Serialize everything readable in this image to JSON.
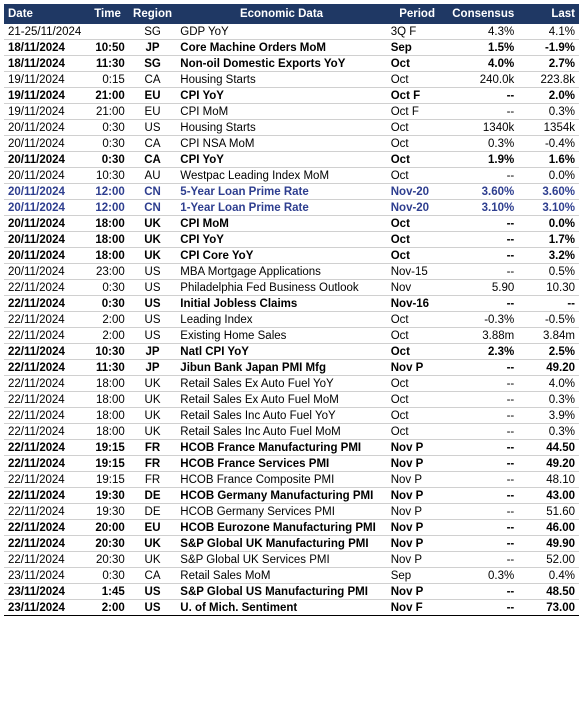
{
  "table": {
    "headers": {
      "date": "Date",
      "time": "Time",
      "region": "Region",
      "data": "Economic Data",
      "period": "Period",
      "consensus": "Consensus",
      "last": "Last"
    },
    "rows": [
      {
        "date": "21-25/11/2024",
        "time": "",
        "region": "SG",
        "data": "GDP YoY",
        "period": "3Q F",
        "consensus": "4.3%",
        "last": "4.1%",
        "bold": false,
        "blue": false
      },
      {
        "date": "18/11/2024",
        "time": "10:50",
        "region": "JP",
        "data": "Core Machine Orders MoM",
        "period": "Sep",
        "consensus": "1.5%",
        "last": "-1.9%",
        "bold": true,
        "blue": false
      },
      {
        "date": "18/11/2024",
        "time": "11:30",
        "region": "SG",
        "data": "Non-oil Domestic Exports YoY",
        "period": "Oct",
        "consensus": "4.0%",
        "last": "2.7%",
        "bold": true,
        "blue": false
      },
      {
        "date": "19/11/2024",
        "time": "0:15",
        "region": "CA",
        "data": "Housing Starts",
        "period": "Oct",
        "consensus": "240.0k",
        "last": "223.8k",
        "bold": false,
        "blue": false
      },
      {
        "date": "19/11/2024",
        "time": "21:00",
        "region": "EU",
        "data": "CPI YoY",
        "period": "Oct F",
        "consensus": "--",
        "last": "2.0%",
        "bold": true,
        "blue": false
      },
      {
        "date": "19/11/2024",
        "time": "21:00",
        "region": "EU",
        "data": "CPI MoM",
        "period": "Oct F",
        "consensus": "--",
        "last": "0.3%",
        "bold": false,
        "blue": false
      },
      {
        "date": "20/11/2024",
        "time": "0:30",
        "region": "US",
        "data": "Housing Starts",
        "period": "Oct",
        "consensus": "1340k",
        "last": "1354k",
        "bold": false,
        "blue": false
      },
      {
        "date": "20/11/2024",
        "time": "0:30",
        "region": "CA",
        "data": "CPI NSA MoM",
        "period": "Oct",
        "consensus": "0.3%",
        "last": "-0.4%",
        "bold": false,
        "blue": false
      },
      {
        "date": "20/11/2024",
        "time": "0:30",
        "region": "CA",
        "data": "CPI YoY",
        "period": "Oct",
        "consensus": "1.9%",
        "last": "1.6%",
        "bold": true,
        "blue": false
      },
      {
        "date": "20/11/2024",
        "time": "10:30",
        "region": "AU",
        "data": "Westpac Leading Index MoM",
        "period": "Oct",
        "consensus": "--",
        "last": "0.0%",
        "bold": false,
        "blue": false
      },
      {
        "date": "20/11/2024",
        "time": "12:00",
        "region": "CN",
        "data": "5-Year Loan Prime Rate",
        "period": "Nov-20",
        "consensus": "3.60%",
        "last": "3.60%",
        "bold": true,
        "blue": true
      },
      {
        "date": "20/11/2024",
        "time": "12:00",
        "region": "CN",
        "data": "1-Year Loan Prime Rate",
        "period": "Nov-20",
        "consensus": "3.10%",
        "last": "3.10%",
        "bold": true,
        "blue": true
      },
      {
        "date": "20/11/2024",
        "time": "18:00",
        "region": "UK",
        "data": "CPI MoM",
        "period": "Oct",
        "consensus": "--",
        "last": "0.0%",
        "bold": true,
        "blue": false
      },
      {
        "date": "20/11/2024",
        "time": "18:00",
        "region": "UK",
        "data": "CPI YoY",
        "period": "Oct",
        "consensus": "--",
        "last": "1.7%",
        "bold": true,
        "blue": false
      },
      {
        "date": "20/11/2024",
        "time": "18:00",
        "region": "UK",
        "data": "CPI Core YoY",
        "period": "Oct",
        "consensus": "--",
        "last": "3.2%",
        "bold": true,
        "blue": false
      },
      {
        "date": "20/11/2024",
        "time": "23:00",
        "region": "US",
        "data": "MBA Mortgage Applications",
        "period": "Nov-15",
        "consensus": "--",
        "last": "0.5%",
        "bold": false,
        "blue": false
      },
      {
        "date": "22/11/2024",
        "time": "0:30",
        "region": "US",
        "data": "Philadelphia Fed Business Outlook",
        "period": "Nov",
        "consensus": "5.90",
        "last": "10.30",
        "bold": false,
        "blue": false
      },
      {
        "date": "22/11/2024",
        "time": "0:30",
        "region": "US",
        "data": "Initial Jobless Claims",
        "period": "Nov-16",
        "consensus": "--",
        "last": "--",
        "bold": true,
        "blue": false
      },
      {
        "date": "22/11/2024",
        "time": "2:00",
        "region": "US",
        "data": "Leading Index",
        "period": "Oct",
        "consensus": "-0.3%",
        "last": "-0.5%",
        "bold": false,
        "blue": false
      },
      {
        "date": "22/11/2024",
        "time": "2:00",
        "region": "US",
        "data": "Existing Home Sales",
        "period": "Oct",
        "consensus": "3.88m",
        "last": "3.84m",
        "bold": false,
        "blue": false
      },
      {
        "date": "22/11/2024",
        "time": "10:30",
        "region": "JP",
        "data": "Natl CPI YoY",
        "period": "Oct",
        "consensus": "2.3%",
        "last": "2.5%",
        "bold": true,
        "blue": false
      },
      {
        "date": "22/11/2024",
        "time": "11:30",
        "region": "JP",
        "data": "Jibun Bank Japan PMI Mfg",
        "period": "Nov P",
        "consensus": "--",
        "last": "49.20",
        "bold": true,
        "blue": false
      },
      {
        "date": "22/11/2024",
        "time": "18:00",
        "region": "UK",
        "data": "Retail Sales Ex Auto Fuel YoY",
        "period": "Oct",
        "consensus": "--",
        "last": "4.0%",
        "bold": false,
        "blue": false
      },
      {
        "date": "22/11/2024",
        "time": "18:00",
        "region": "UK",
        "data": "Retail Sales Ex Auto Fuel MoM",
        "period": "Oct",
        "consensus": "--",
        "last": "0.3%",
        "bold": false,
        "blue": false
      },
      {
        "date": "22/11/2024",
        "time": "18:00",
        "region": "UK",
        "data": "Retail Sales Inc Auto Fuel YoY",
        "period": "Oct",
        "consensus": "--",
        "last": "3.9%",
        "bold": false,
        "blue": false
      },
      {
        "date": "22/11/2024",
        "time": "18:00",
        "region": "UK",
        "data": "Retail Sales Inc Auto Fuel MoM",
        "period": "Oct",
        "consensus": "--",
        "last": "0.3%",
        "bold": false,
        "blue": false
      },
      {
        "date": "22/11/2024",
        "time": "19:15",
        "region": "FR",
        "data": "HCOB France Manufacturing PMI",
        "period": "Nov P",
        "consensus": "--",
        "last": "44.50",
        "bold": true,
        "blue": false
      },
      {
        "date": "22/11/2024",
        "time": "19:15",
        "region": "FR",
        "data": "HCOB France Services PMI",
        "period": "Nov P",
        "consensus": "--",
        "last": "49.20",
        "bold": true,
        "blue": false
      },
      {
        "date": "22/11/2024",
        "time": "19:15",
        "region": "FR",
        "data": "HCOB France Composite PMI",
        "period": "Nov P",
        "consensus": "--",
        "last": "48.10",
        "bold": false,
        "blue": false
      },
      {
        "date": "22/11/2024",
        "time": "19:30",
        "region": "DE",
        "data": "HCOB Germany Manufacturing PMI",
        "period": "Nov P",
        "consensus": "--",
        "last": "43.00",
        "bold": true,
        "blue": false
      },
      {
        "date": "22/11/2024",
        "time": "19:30",
        "region": "DE",
        "data": "HCOB Germany Services PMI",
        "period": "Nov P",
        "consensus": "--",
        "last": "51.60",
        "bold": false,
        "blue": false
      },
      {
        "date": "22/11/2024",
        "time": "20:00",
        "region": "EU",
        "data": "HCOB Eurozone Manufacturing PMI",
        "period": "Nov P",
        "consensus": "--",
        "last": "46.00",
        "bold": true,
        "blue": false
      },
      {
        "date": "22/11/2024",
        "time": "20:30",
        "region": "UK",
        "data": "S&P Global UK Manufacturing PMI",
        "period": "Nov P",
        "consensus": "--",
        "last": "49.90",
        "bold": true,
        "blue": false
      },
      {
        "date": "22/11/2024",
        "time": "20:30",
        "region": "UK",
        "data": "S&P Global UK Services PMI",
        "period": "Nov P",
        "consensus": "--",
        "last": "52.00",
        "bold": false,
        "blue": false
      },
      {
        "date": "23/11/2024",
        "time": "0:30",
        "region": "CA",
        "data": "Retail Sales MoM",
        "period": "Sep",
        "consensus": "0.3%",
        "last": "0.4%",
        "bold": false,
        "blue": false
      },
      {
        "date": "23/11/2024",
        "time": "1:45",
        "region": "US",
        "data": "S&P Global US Manufacturing PMI",
        "period": "Nov P",
        "consensus": "--",
        "last": "48.50",
        "bold": true,
        "blue": false
      },
      {
        "date": "23/11/2024",
        "time": "2:00",
        "region": "US",
        "data": "U. of Mich. Sentiment",
        "period": "Nov F",
        "consensus": "--",
        "last": "73.00",
        "bold": true,
        "blue": false
      }
    ]
  }
}
